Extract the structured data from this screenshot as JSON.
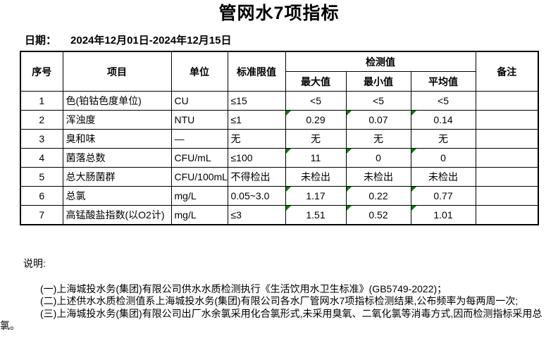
{
  "page": {
    "background": "#ffffff"
  },
  "title": "管网水7项指标",
  "date": {
    "label": "日期：",
    "value": "2024年12月01日-2024年12月15日"
  },
  "table": {
    "headers": {
      "index": "序号",
      "item": "项目",
      "unit": "单位",
      "limit": "标准限值",
      "detection_group": "检测值",
      "max": "最大值",
      "min": "最小值",
      "avg": "平均值",
      "remark": "备注"
    },
    "rows": [
      {
        "index": "1",
        "item": "色(铂钴色度单位)",
        "unit": "CU",
        "limit": "≤15",
        "max": "<5",
        "min": "<5",
        "avg": "<5",
        "remark": "",
        "flagged": false
      },
      {
        "index": "2",
        "item": "浑浊度",
        "unit": "NTU",
        "limit": "≤1",
        "max": "0.29",
        "min": "0.07",
        "avg": "0.14",
        "remark": "",
        "flagged": true
      },
      {
        "index": "3",
        "item": "臭和味",
        "unit": "—",
        "limit": "无",
        "max": "无",
        "min": "无",
        "avg": "无",
        "remark": "",
        "flagged": false
      },
      {
        "index": "4",
        "item": "菌落总数",
        "unit": "CFU/mL",
        "limit": "≤100",
        "max": "11",
        "min": "0",
        "avg": "0",
        "remark": "",
        "flagged": true
      },
      {
        "index": "5",
        "item": "总大肠菌群",
        "unit": "CFU/100mL",
        "limit": "不得检出",
        "max": "未检出",
        "min": "未检出",
        "avg": "未检出",
        "remark": "",
        "flagged": false
      },
      {
        "index": "6",
        "item": "总氯",
        "unit": "mg/L",
        "limit": "0.05~3.0",
        "max": "1.17",
        "min": "0.22",
        "avg": "0.77",
        "remark": "",
        "flagged": true
      },
      {
        "index": "7",
        "item": "高锰酸盐指数(以O2计)",
        "unit": "mg/L",
        "limit": "≤3",
        "max": "1.51",
        "min": "0.52",
        "avg": "1.01",
        "remark": "",
        "flagged": true
      }
    ]
  },
  "notes": {
    "heading": "说明:",
    "items": [
      "(一)上海城投水务(集团)有限公司供水水质检测执行《生活饮用水卫生标准》(GB5749-2022)；",
      "(二)上述供水水质检测值系上海城投水务(集团)有限公司各水厂管网水7项指标检测结果,公布频率为每两周一次;",
      "(三)上海城投水务(集团)有限公司出厂水余氯采用化合氯形式,未采用臭氧、二氧化氯等消毒方式,因而检测指标采用总氯。"
    ]
  },
  "colors": {
    "flag_triangle": "#008000",
    "border": "#000000",
    "text": "#000000"
  }
}
